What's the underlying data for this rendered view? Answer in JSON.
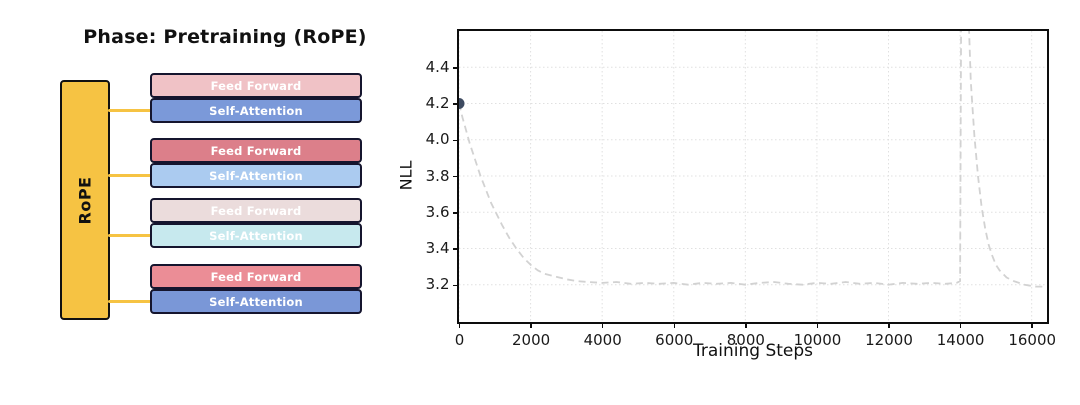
{
  "diagram": {
    "title": "Phase: Pretraining (RoPE)",
    "rope": {
      "label": "RoPE",
      "fill": "#F6C343",
      "border": "#111111"
    },
    "connector_color": "#F6C343",
    "block_border": "#15152e",
    "block_text_color": "#ffffff",
    "layers": [
      {
        "ff_label": "Feed Forward",
        "ff_color": "#F0C2C6",
        "sa_label": "Self-Attention",
        "sa_color": "#7B99D9"
      },
      {
        "ff_label": "Feed Forward",
        "ff_color": "#DC7F8A",
        "sa_label": "Self-Attention",
        "sa_color": "#ABCBF0"
      },
      {
        "ff_label": "Feed Forward",
        "ff_color": "#EBDCDC",
        "sa_label": "Self-Attention",
        "sa_color": "#C7E9EE"
      },
      {
        "ff_label": "Feed Forward",
        "ff_color": "#EB8D96",
        "sa_label": "Self-Attention",
        "sa_color": "#7A97D7"
      }
    ]
  },
  "chart_data": {
    "type": "line",
    "title": "",
    "xlabel": "Training Steps",
    "ylabel": "NLL",
    "xlim": [
      0,
      16400
    ],
    "ylim": [
      3.0,
      4.6
    ],
    "xticks": [
      {
        "v": 0,
        "label": "0"
      },
      {
        "v": 2000,
        "label": "2000"
      },
      {
        "v": 4000,
        "label": "4000"
      },
      {
        "v": 6000,
        "label": "6000"
      },
      {
        "v": 8000,
        "label": "8000"
      },
      {
        "v": 10000,
        "label": "10000"
      },
      {
        "v": 12000,
        "label": "12000"
      },
      {
        "v": 14000,
        "label": "14000"
      },
      {
        "v": 16000,
        "label": "16000"
      }
    ],
    "yticks": [
      {
        "v": 3.2,
        "label": "3.2"
      },
      {
        "v": 3.4,
        "label": "3.4"
      },
      {
        "v": 3.6,
        "label": "3.6"
      },
      {
        "v": 3.8,
        "label": "3.8"
      },
      {
        "v": 4.0,
        "label": "4.0"
      },
      {
        "v": 4.2,
        "label": "4.2"
      },
      {
        "v": 4.4,
        "label": "4.4"
      }
    ],
    "grid": true,
    "grid_color": "#e0e0e0",
    "line_color": "#d2d2d2",
    "line_style": "dashed",
    "legend": "none",
    "start_marker": {
      "x": 0,
      "y": 4.2,
      "color": "#3E4B61"
    },
    "series": [
      {
        "name": "NLL",
        "x": [
          0,
          100,
          200,
          300,
          400,
          500,
          600,
          700,
          800,
          900,
          1000,
          1200,
          1400,
          1600,
          1800,
          2000,
          2200,
          2400,
          2600,
          2800,
          3000,
          3300,
          3600,
          4000,
          4400,
          4800,
          5200,
          5600,
          6000,
          6400,
          6800,
          7200,
          7600,
          8000,
          8400,
          8800,
          9200,
          9600,
          10000,
          10400,
          10800,
          11200,
          11600,
          12000,
          12400,
          12800,
          13200,
          13600,
          13900,
          14000,
          14030,
          14220,
          14300,
          14400,
          14500,
          14600,
          14700,
          14800,
          14900,
          15000,
          15100,
          15300,
          15500,
          15800,
          16100,
          16300
        ],
        "y": [
          4.2,
          4.12,
          4.05,
          3.98,
          3.92,
          3.86,
          3.8,
          3.75,
          3.7,
          3.65,
          3.61,
          3.53,
          3.46,
          3.4,
          3.35,
          3.31,
          3.28,
          3.26,
          3.25,
          3.24,
          3.23,
          3.22,
          3.215,
          3.21,
          3.215,
          3.205,
          3.21,
          3.205,
          3.21,
          3.2,
          3.21,
          3.205,
          3.21,
          3.2,
          3.21,
          3.215,
          3.205,
          3.2,
          3.21,
          3.205,
          3.215,
          3.205,
          3.21,
          3.2,
          3.21,
          3.205,
          3.21,
          3.205,
          3.21,
          3.22,
          4.78,
          4.78,
          4.32,
          4.02,
          3.8,
          3.63,
          3.51,
          3.42,
          3.36,
          3.31,
          3.28,
          3.24,
          3.22,
          3.2,
          3.19,
          3.19
        ]
      }
    ]
  }
}
